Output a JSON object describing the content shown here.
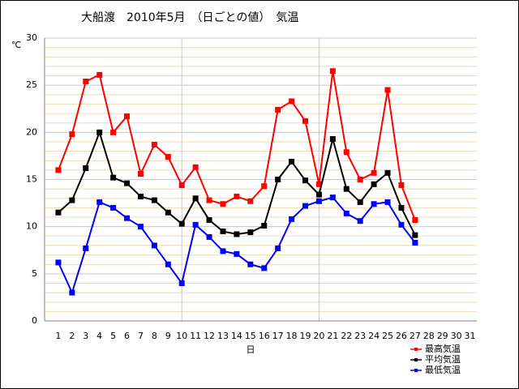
{
  "chart_data": {
    "type": "line",
    "title": "大船渡　2010年5月　（日ごとの値）　気温",
    "ylabel": "℃",
    "xlabel": "日",
    "x": [
      1,
      2,
      3,
      4,
      5,
      6,
      7,
      8,
      9,
      10,
      11,
      12,
      13,
      14,
      15,
      16,
      17,
      18,
      19,
      20,
      21,
      22,
      23,
      24,
      25,
      26,
      27
    ],
    "series": [
      {
        "name": "最高気温",
        "color": "#ff0000",
        "values": [
          16.0,
          19.8,
          25.4,
          26.1,
          20.0,
          21.7,
          15.6,
          18.7,
          17.4,
          14.4,
          16.3,
          12.8,
          12.4,
          13.2,
          12.7,
          14.3,
          22.4,
          23.3,
          21.2,
          14.5,
          26.5,
          17.9,
          15.0,
          15.7,
          24.5,
          14.4,
          10.7
        ]
      },
      {
        "name": "平均気温",
        "color": "#000000",
        "values": [
          11.5,
          12.8,
          16.2,
          20.0,
          15.2,
          14.6,
          13.2,
          12.8,
          11.5,
          10.3,
          13.0,
          10.7,
          9.5,
          9.2,
          9.4,
          10.1,
          15.0,
          16.9,
          14.9,
          13.4,
          19.3,
          14.0,
          12.6,
          14.5,
          15.7,
          12.0,
          9.1
        ]
      },
      {
        "name": "最低気温",
        "color": "#0000ff",
        "values": [
          6.2,
          3.0,
          7.7,
          12.6,
          12.0,
          10.9,
          10.0,
          8.0,
          6.0,
          4.0,
          10.2,
          8.9,
          7.4,
          7.1,
          6.0,
          5.6,
          7.7,
          10.8,
          12.2,
          12.7,
          13.1,
          11.4,
          10.6,
          12.4,
          12.6,
          10.2,
          8.3
        ]
      }
    ],
    "xlim": [
      0,
      31.5
    ],
    "xticks": [
      1,
      2,
      3,
      4,
      5,
      6,
      7,
      8,
      9,
      10,
      11,
      12,
      13,
      14,
      15,
      16,
      17,
      18,
      19,
      20,
      21,
      22,
      23,
      24,
      25,
      26,
      27,
      28,
      29,
      30,
      31
    ],
    "xgrid": [
      10,
      20
    ],
    "ylim": [
      0,
      30
    ],
    "yticks": [
      0,
      5,
      10,
      15,
      20,
      25,
      30
    ],
    "yminorticks": [
      1,
      2,
      3,
      4,
      6,
      7,
      8,
      9,
      11,
      12,
      13,
      14,
      16,
      17,
      18,
      19,
      21,
      22,
      23,
      24,
      26,
      27,
      28,
      29
    ],
    "grid": true,
    "legend": "lower right"
  }
}
